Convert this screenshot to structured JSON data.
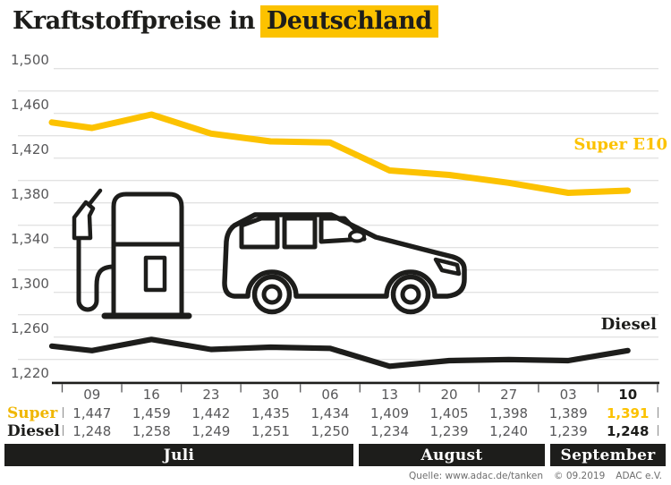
{
  "title": {
    "text_prefix": "Kraftstoffpreise in",
    "highlighted_word": "Deutschland"
  },
  "colors": {
    "accent_yellow": "#FCC200",
    "dark": "#1D1D1B",
    "gray_text": "#58585A",
    "gridline": "#D8D8D8",
    "footer_gray": "#6E6E6E"
  },
  "chart_data": {
    "type": "line",
    "title": "Kraftstoffpreise in Deutschland",
    "x_categories": [
      "09",
      "16",
      "23",
      "30",
      "06",
      "13",
      "20",
      "27",
      "03",
      "10"
    ],
    "series": [
      {
        "name": "Super E10",
        "color": "#FCC200",
        "lead_in_value": 1452,
        "values": [
          1447,
          1459,
          1442,
          1435,
          1434,
          1409,
          1405,
          1398,
          1389,
          1391
        ]
      },
      {
        "name": "Diesel",
        "color": "#1D1D1B",
        "lead_in_value": 1252,
        "values": [
          1248,
          1258,
          1249,
          1251,
          1250,
          1234,
          1239,
          1240,
          1239,
          1248
        ]
      }
    ],
    "y_axis": {
      "min": 1220,
      "max": 1500,
      "gridline_step": 20,
      "label_step": 40,
      "tick_labels": [
        "1,220",
        "1,260",
        "1,300",
        "1,340",
        "1,380",
        "1,420",
        "1,460",
        "1,500"
      ]
    },
    "grid": true,
    "legend_position": "labels-at-line-right",
    "months_axis": [
      "Juli",
      "August",
      "September"
    ]
  },
  "table": {
    "header_dates": [
      "09",
      "16",
      "23",
      "30",
      "06",
      "13",
      "20",
      "27",
      "03",
      "10"
    ],
    "rows": [
      {
        "label": "Super",
        "values": [
          "1,447",
          "1,459",
          "1,442",
          "1,435",
          "1,434",
          "1,409",
          "1,405",
          "1,398",
          "1,389",
          "1,391"
        ]
      },
      {
        "label": "Diesel",
        "values": [
          "1,248",
          "1,258",
          "1,249",
          "1,251",
          "1,250",
          "1,234",
          "1,239",
          "1,240",
          "1,239",
          "1,248"
        ]
      }
    ]
  },
  "series_labels": {
    "super_e10": "Super E10",
    "diesel": "Diesel"
  },
  "months": [
    {
      "label": "Juli"
    },
    {
      "label": "August"
    },
    {
      "label": "September"
    }
  ],
  "footer": {
    "source": "Quelle: www.adac.de/tanken",
    "copyright": "© 09.2019",
    "organization": "ADAC e.V."
  },
  "icons": {
    "pump": "fuel-pump-icon",
    "car": "car-icon"
  }
}
